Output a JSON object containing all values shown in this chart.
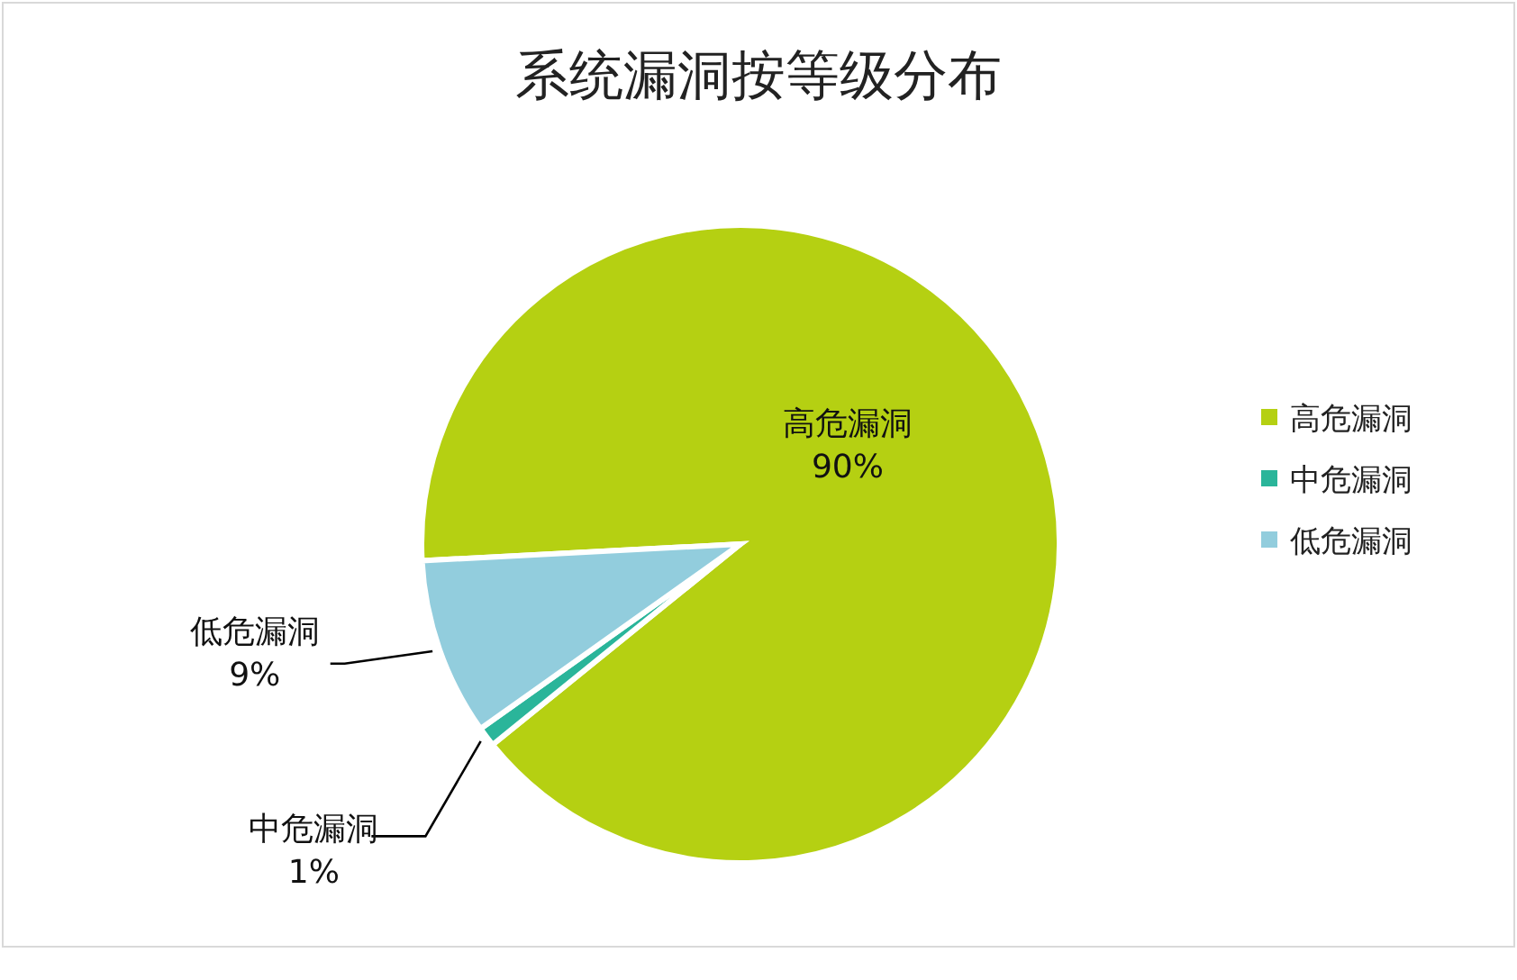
{
  "chart_data": {
    "type": "pie",
    "title": "系统漏洞按等级分布",
    "categories": [
      "高危漏洞",
      "中危漏洞",
      "低危漏洞"
    ],
    "values": [
      90,
      1,
      9
    ],
    "value_labels": [
      "90%",
      "1%",
      "9%"
    ],
    "colors": [
      "#b5d012",
      "#2ab59a",
      "#92cddd"
    ],
    "legend": "right"
  }
}
